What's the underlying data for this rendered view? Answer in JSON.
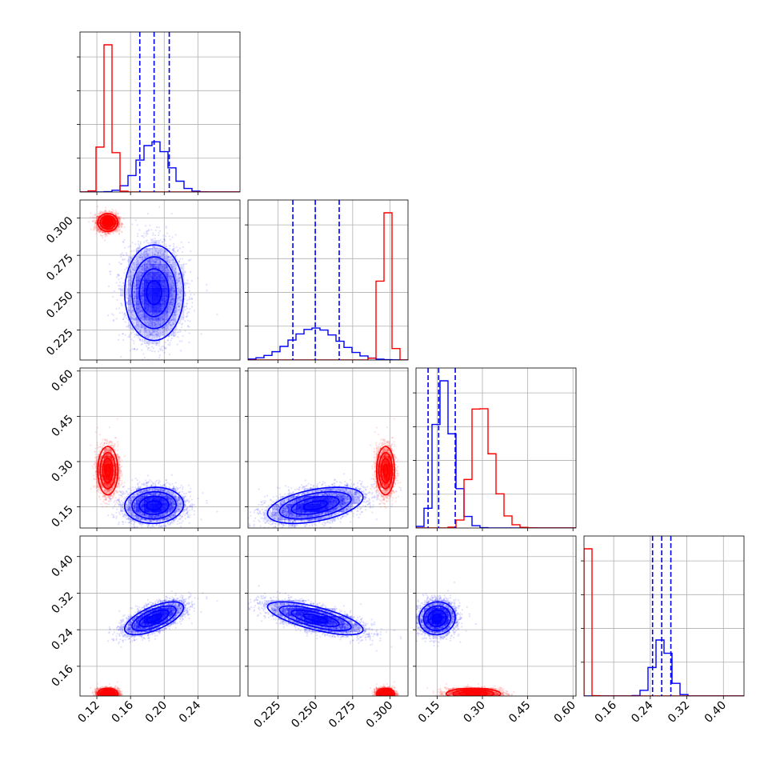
{
  "chart_data": {
    "type": "corner",
    "parameters": 4,
    "grid": true,
    "series": [
      {
        "color": "#0000ff"
      },
      {
        "color": "#ff0000"
      }
    ],
    "axes": [
      {
        "range": [
          0.1,
          0.29
        ],
        "ticks": [
          0.12,
          0.16,
          0.2,
          0.24
        ],
        "tick_labels": [
          "0.12",
          "0.16",
          "0.20",
          "0.24"
        ]
      },
      {
        "range": [
          0.205,
          0.312
        ],
        "ticks": [
          0.225,
          0.25,
          0.275,
          0.3
        ],
        "tick_labels": [
          "0.225",
          "0.250",
          "0.275",
          "0.300"
        ]
      },
      {
        "range": [
          0.08,
          0.61
        ],
        "ticks": [
          0.15,
          0.3,
          0.45,
          0.6
        ],
        "tick_labels": [
          "0.15",
          "0.30",
          "0.45",
          "0.60"
        ]
      },
      {
        "range": [
          0.095,
          0.445
        ],
        "ticks": [
          0.16,
          0.24,
          0.32,
          0.4
        ],
        "tick_labels": [
          "0.16",
          "0.24",
          "0.32",
          "0.40"
        ]
      }
    ],
    "marginals": [
      {
        "blue": {
          "mean": 0.188,
          "sd": 0.0175,
          "quantiles": [
            0.171,
            0.188,
            0.206
          ]
        },
        "red": {
          "mean": 0.133,
          "sd": 0.006
        }
      },
      {
        "blue": {
          "mean": 0.25,
          "sd": 0.016,
          "quantiles": [
            0.235,
            0.25,
            0.266
          ]
        },
        "red": {
          "mean": 0.297,
          "sd": 0.003
        }
      },
      {
        "blue": {
          "mean": 0.145,
          "sd": 0.045,
          "skew": 3.0,
          "quantiles": [
            0.12,
            0.155,
            0.21
          ]
        },
        "red": {
          "mean": 0.265,
          "sd": 0.052,
          "skew": 3.0
        }
      },
      {
        "blue": {
          "mean": 0.265,
          "sd": 0.018,
          "quantiles": [
            0.245,
            0.265,
            0.285
          ]
        },
        "red": {
          "mean": 0.1,
          "sd": 0.006
        }
      }
    ],
    "pairs": [
      {
        "row": 1,
        "col": 0,
        "blue": {
          "mx": 0.188,
          "my": 0.25,
          "sx": 0.0175,
          "sy": 0.016,
          "rho": 0.0
        },
        "red": {
          "mx": 0.133,
          "my": 0.297,
          "sx": 0.006,
          "sy": 0.003,
          "rho": 0.0
        }
      },
      {
        "row": 2,
        "col": 0,
        "blue": {
          "mx": 0.188,
          "my": 0.155,
          "sx": 0.0175,
          "sy": 0.03,
          "rho": 0.05
        },
        "red": {
          "mx": 0.133,
          "my": 0.27,
          "sx": 0.006,
          "sy": 0.04,
          "rho": 0.0
        }
      },
      {
        "row": 2,
        "col": 1,
        "blue": {
          "mx": 0.25,
          "my": 0.155,
          "sx": 0.016,
          "sy": 0.03,
          "rho": 0.45
        },
        "red": {
          "mx": 0.297,
          "my": 0.27,
          "sx": 0.003,
          "sy": 0.04,
          "rho": 0.0
        }
      },
      {
        "row": 3,
        "col": 0,
        "blue": {
          "mx": 0.188,
          "my": 0.265,
          "sx": 0.0175,
          "sy": 0.018,
          "rho": 0.65
        },
        "red": {
          "mx": 0.133,
          "my": 0.1,
          "sx": 0.006,
          "sy": 0.006,
          "rho": 0.0
        }
      },
      {
        "row": 3,
        "col": 1,
        "blue": {
          "mx": 0.25,
          "my": 0.265,
          "sx": 0.016,
          "sy": 0.018,
          "rho": -0.7
        },
        "red": {
          "mx": 0.297,
          "my": 0.1,
          "sx": 0.003,
          "sy": 0.006,
          "rho": 0.0
        }
      },
      {
        "row": 3,
        "col": 2,
        "blue": {
          "mx": 0.15,
          "my": 0.265,
          "sx": 0.03,
          "sy": 0.018,
          "rho": 0.05
        },
        "red": {
          "mx": 0.27,
          "my": 0.1,
          "sx": 0.045,
          "sy": 0.006,
          "rho": 0.0
        }
      }
    ]
  }
}
